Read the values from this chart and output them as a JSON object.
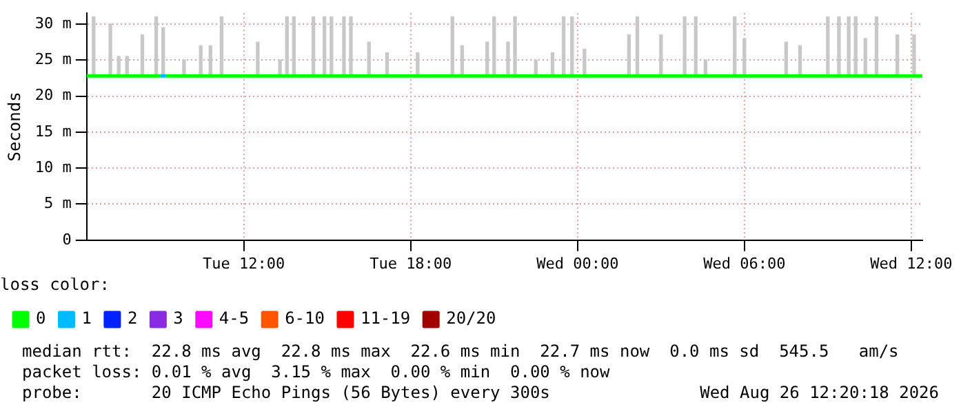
{
  "chart_data": {
    "type": "line",
    "ylabel": "Seconds",
    "xlim": [
      "2026-08-25T06:21",
      "2026-08-26T12:24"
    ],
    "ylim": [
      0,
      31.5
    ],
    "xticks": [
      {
        "value": "2026-08-25T12:00",
        "label": "Tue 12:00"
      },
      {
        "value": "2026-08-25T18:00",
        "label": "Tue 18:00"
      },
      {
        "value": "2026-08-26T00:00",
        "label": "Wed 00:00"
      },
      {
        "value": "2026-08-26T06:00",
        "label": "Wed 06:00"
      },
      {
        "value": "2026-08-26T12:00",
        "label": "Wed 12:00"
      }
    ],
    "yticks": [
      0,
      {
        "value": 5,
        "label": "5 m"
      },
      {
        "value": 10,
        "label": "10 m"
      },
      {
        "value": 15,
        "label": "15 m"
      },
      {
        "value": 20,
        "label": "20 m"
      },
      {
        "value": 25,
        "label": "25 m"
      },
      {
        "value": 30,
        "label": "30 m"
      }
    ],
    "grid": true,
    "legend": "bottom",
    "legend_title": "loss color:",
    "marker": "none",
    "line_style": "solid",
    "series": [
      {
        "type": "bar",
        "color": "#c8c8c8",
        "x": [
          "2026-08-25T06:36",
          "2026-08-25T07:12",
          "2026-08-25T07:30",
          "2026-08-25T07:48",
          "2026-08-25T08:21",
          "2026-08-25T08:51",
          "2026-08-25T09:06",
          "2026-08-25T09:51",
          "2026-08-25T10:27",
          "2026-08-25T10:48",
          "2026-08-25T11:12",
          "2026-08-25T12:30",
          "2026-08-25T13:18",
          "2026-08-25T13:33",
          "2026-08-25T13:48",
          "2026-08-25T14:30",
          "2026-08-25T14:54",
          "2026-08-25T15:09",
          "2026-08-25T15:36",
          "2026-08-25T15:51",
          "2026-08-25T16:30",
          "2026-08-25T17:09",
          "2026-08-25T18:15",
          "2026-08-25T19:30",
          "2026-08-25T19:51",
          "2026-08-25T20:45",
          "2026-08-25T21:00",
          "2026-08-25T21:30",
          "2026-08-25T21:45",
          "2026-08-25T22:30",
          "2026-08-25T23:06",
          "2026-08-25T23:30",
          "2026-08-25T23:48",
          "2026-08-26T00:15",
          "2026-08-26T01:51",
          "2026-08-26T02:09",
          "2026-08-26T03:00",
          "2026-08-26T03:51",
          "2026-08-26T04:15",
          "2026-08-26T04:36",
          "2026-08-26T05:39",
          "2026-08-26T06:00",
          "2026-08-26T07:30",
          "2026-08-26T08:00",
          "2026-08-26T09:00",
          "2026-08-26T09:24",
          "2026-08-26T09:45",
          "2026-08-26T10:00",
          "2026-08-26T10:21",
          "2026-08-26T10:45",
          "2026-08-26T11:30",
          "2026-08-26T12:06"
        ],
        "base": [
          22.7,
          22.7,
          22.7,
          22.7,
          22.7,
          22.7,
          22.7,
          22.7,
          22.7,
          22.7,
          22.7,
          22.7,
          22.7,
          22.7,
          22.7,
          22.7,
          22.7,
          22.7,
          22.7,
          22.7,
          22.7,
          22.7,
          22.7,
          22.7,
          22.7,
          22.7,
          22.7,
          22.7,
          22.7,
          22.7,
          22.7,
          22.7,
          22.7,
          22.7,
          22.7,
          22.7,
          22.7,
          22.7,
          22.7,
          22.7,
          22.7,
          22.7,
          22.7,
          22.7,
          22.7,
          22.7,
          22.7,
          22.7,
          22.7,
          22.7,
          22.7,
          22.7
        ],
        "values": [
          8.3,
          7.3,
          2.8,
          2.8,
          5.8,
          8.3,
          6.8,
          2.3,
          4.3,
          4.3,
          8.3,
          4.8,
          2.3,
          8.3,
          8.3,
          8.3,
          8.3,
          8.3,
          8.3,
          8.3,
          4.8,
          3.3,
          3.3,
          8.3,
          4.3,
          4.8,
          8.3,
          4.8,
          8.3,
          2.3,
          3.3,
          8.3,
          8.3,
          3.8,
          5.8,
          8.3,
          5.8,
          8.3,
          8.3,
          2.3,
          8.3,
          5.3,
          4.8,
          4.3,
          8.3,
          8.3,
          8.3,
          8.3,
          5.3,
          8.3,
          5.8,
          5.8
        ]
      },
      {
        "name": "0",
        "color": "#00ff00",
        "x": [
          "2026-08-25T06:21",
          "2026-08-25T09:00",
          "2026-08-25T09:06",
          "2026-08-25T09:12",
          "2026-08-25T12:00",
          "2026-08-25T18:00",
          "2026-08-26T00:00",
          "2026-08-26T06:00",
          "2026-08-26T12:24"
        ],
        "values": [
          22.8,
          22.8,
          null,
          22.8,
          22.8,
          22.8,
          22.8,
          22.8,
          22.8
        ]
      },
      {
        "name": "1",
        "color": "#00bbff",
        "x": [
          "2026-08-25T09:00",
          "2026-08-25T09:12"
        ],
        "values": [
          22.8,
          22.8
        ]
      },
      {
        "name": "2",
        "color": "#0022ff"
      },
      {
        "name": "3",
        "color": "#8a2be2"
      },
      {
        "name": "4-5",
        "color": "#fa0bff"
      },
      {
        "name": "6-10",
        "color": "#ff5500"
      },
      {
        "name": "11-19",
        "color": "#ff0000"
      },
      {
        "name": "20/20",
        "color": "#a10000"
      }
    ],
    "annotations": [
      "median rtt:  22.8 ms avg  22.8 ms max  22.6 ms min  22.7 ms now  0.0 ms sd  545.5   am/s",
      "packet loss: 0.01 % avg  3.15 % max  0.00 % min  0.00 % now",
      "probe:       20 ICMP Echo Pings (56 Bytes) every 300s",
      "Wed Aug 26 12:20:18 2026"
    ]
  }
}
